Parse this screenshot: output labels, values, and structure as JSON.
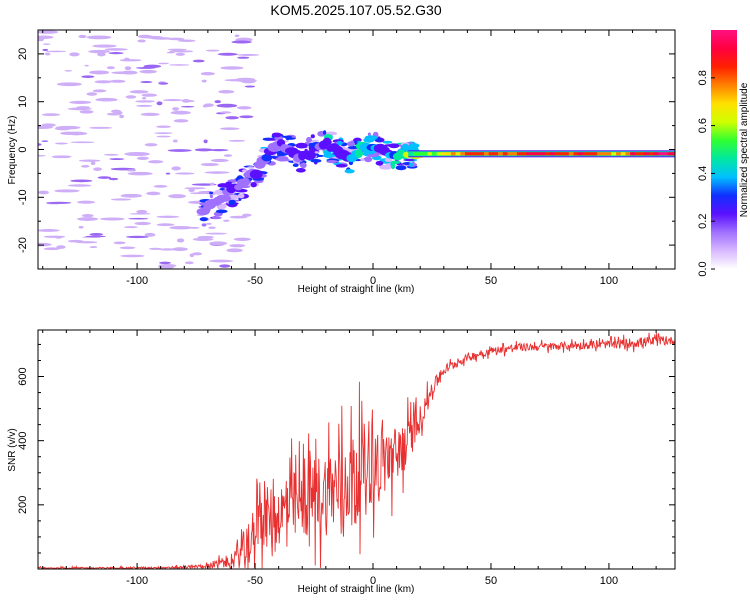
{
  "title": "KOM5.2025.107.05.52.G30",
  "chart_data": [
    {
      "type": "heatmap",
      "xlabel": "Height of straight line (km)",
      "ylabel": "Frequency (Hz)",
      "xlim": [
        -142,
        128
      ],
      "ylim": [
        -25,
        25
      ],
      "xticks": [
        -100,
        -50,
        0,
        50,
        100
      ],
      "xtick_labels": [
        "-100",
        "-50",
        "0",
        "50",
        "100"
      ],
      "yticks": [
        -20,
        -10,
        0,
        10,
        20
      ],
      "ytick_labels": [
        "-20",
        "-10",
        "0",
        "10",
        "20"
      ],
      "colorbar": {
        "label": "Normalized spectral amplitude",
        "range": [
          0,
          1
        ],
        "ticks": [
          0.0,
          0.2,
          0.4,
          0.6,
          0.8
        ],
        "tick_labels": [
          "0.0",
          "0.2",
          "0.4",
          "0.6",
          "0.8"
        ],
        "colors": [
          "#ffffff",
          "#d8b8ff",
          "#a070ff",
          "#5a10ff",
          "#1030ff",
          "#00c0ff",
          "#00e8a0",
          "#30ff30",
          "#d0ff00",
          "#ffe000",
          "#ff8000",
          "#ff2000",
          "#ff0040",
          "#ff1080"
        ]
      },
      "ridge": {
        "x": [
          -72,
          -65,
          -58,
          -50,
          -45,
          -40,
          -35,
          -30,
          -25,
          -20,
          -15,
          -10,
          -5,
          0,
          5,
          10,
          20,
          30,
          40,
          50,
          60,
          70,
          80,
          90,
          100,
          110,
          120,
          128
        ],
        "y": [
          -13,
          -11,
          -8,
          -5,
          -1,
          1,
          0,
          -2,
          0,
          1,
          0,
          -2,
          0,
          0.5,
          -1,
          -1,
          -0.5,
          -0.7,
          -0.8,
          -0.8,
          -0.8,
          -0.8,
          -0.9,
          -0.9,
          -1,
          -0.9,
          -0.9,
          -0.9
        ],
        "amplitude": [
          0.15,
          0.2,
          0.2,
          0.15,
          0.25,
          0.15,
          0.2,
          0.2,
          0.25,
          0.2,
          0.25,
          0.3,
          0.4,
          0.35,
          0.3,
          0.4,
          0.55,
          0.7,
          0.85,
          0.9,
          0.85,
          0.95,
          0.9,
          0.95,
          0.7,
          0.9,
          1.0,
          0.95
        ]
      }
    },
    {
      "type": "line",
      "xlabel": "Height of straight line (km)",
      "ylabel": "SNR (v/v)",
      "xlim": [
        -142,
        128
      ],
      "ylim": [
        0,
        745
      ],
      "xticks": [
        -100,
        -50,
        0,
        50,
        100
      ],
      "xtick_labels": [
        "-100",
        "-50",
        "0",
        "50",
        "100"
      ],
      "yticks": [
        200,
        400,
        600
      ],
      "ytick_labels": [
        "200",
        "400",
        "600"
      ],
      "color": "#e83030",
      "series": [
        {
          "x": [
            -142,
            -120,
            -100,
            -80,
            -70,
            -60,
            -55,
            -50,
            -45,
            -40,
            -35,
            -30,
            -25,
            -20,
            -15,
            -10,
            -5,
            0,
            5,
            10,
            15,
            20,
            25,
            30,
            40,
            50,
            60,
            80,
            100,
            110,
            120,
            128
          ],
          "y": [
            3,
            3,
            4,
            5,
            10,
            25,
            60,
            110,
            160,
            170,
            190,
            200,
            230,
            240,
            260,
            280,
            320,
            330,
            340,
            350,
            400,
            470,
            560,
            620,
            660,
            680,
            690,
            695,
            700,
            705,
            710,
            712
          ],
          "spread": [
            3,
            3,
            3,
            5,
            8,
            30,
            70,
            110,
            120,
            120,
            140,
            140,
            150,
            170,
            170,
            170,
            170,
            160,
            140,
            120,
            90,
            50,
            30,
            20,
            15,
            15,
            15,
            15,
            15,
            20,
            20,
            15
          ]
        }
      ]
    }
  ]
}
